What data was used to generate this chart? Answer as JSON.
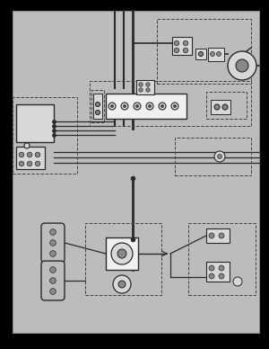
{
  "page_bg": "#000000",
  "diagram_bg": "#bcbcbc",
  "diagram_border": "#888888",
  "line_color": "#2a2a2a",
  "dashed_color": "#444444",
  "box_fc": "#d8d8d8",
  "box_ec": "#2a2a2a",
  "white_fc": "#f0f0f0",
  "pin_fc": "#888888",
  "dark_fc": "#555555"
}
